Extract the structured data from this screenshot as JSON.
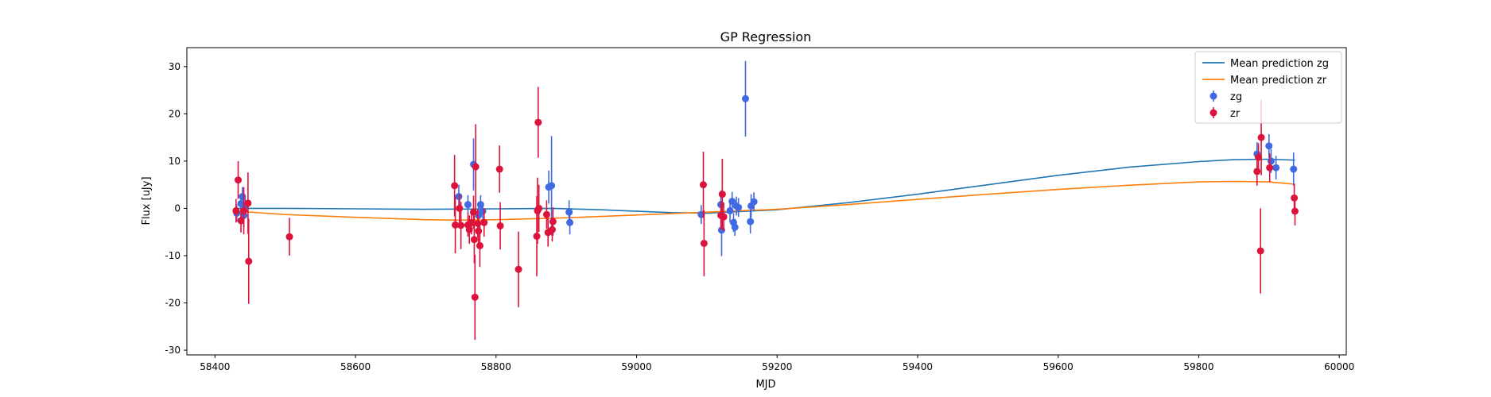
{
  "chart_data": {
    "type": "scatter",
    "title": "GP Regression",
    "xlabel": "MJD",
    "ylabel": "Flux [uJy]",
    "xlim": [
      58360,
      60010
    ],
    "ylim": [
      -31,
      34
    ],
    "xticks": [
      58400,
      58600,
      58800,
      59000,
      59200,
      59400,
      59600,
      59800,
      60000
    ],
    "yticks": [
      -30,
      -20,
      -10,
      0,
      10,
      20,
      30
    ],
    "grid": false,
    "legend_position": "top-right",
    "colors": {
      "mean_zg": "#1f77b4",
      "mean_zr": "#ff7f0e",
      "zg": "#4169e1",
      "zr": "#dc143c"
    },
    "lines": [
      {
        "name": "Mean prediction zg",
        "color_key": "mean_zg",
        "x": [
          58430,
          58500,
          58600,
          58700,
          58800,
          58880,
          58950,
          59050,
          59100,
          59200,
          59300,
          59400,
          59500,
          59600,
          59700,
          59800,
          59850,
          59900,
          59937
        ],
        "y": [
          0.0,
          0.0,
          -0.1,
          -0.2,
          -0.1,
          0.0,
          -0.3,
          -0.9,
          -1.0,
          -0.3,
          1.2,
          3.0,
          5.0,
          7.0,
          8.7,
          9.9,
          10.3,
          10.4,
          10.2
        ]
      },
      {
        "name": "Mean prediction zr",
        "color_key": "mean_zr",
        "x": [
          58430,
          58500,
          58600,
          58700,
          58750,
          58800,
          58900,
          59000,
          59100,
          59200,
          59300,
          59400,
          59500,
          59600,
          59700,
          59800,
          59850,
          59900,
          59937
        ],
        "y": [
          -0.6,
          -1.3,
          -1.9,
          -2.4,
          -2.5,
          -2.4,
          -2.0,
          -1.4,
          -0.8,
          -0.2,
          0.8,
          1.9,
          3.0,
          4.0,
          4.9,
          5.6,
          5.7,
          5.6,
          5.1
        ]
      }
    ],
    "series": [
      {
        "name": "zg",
        "color_key": "zg",
        "points": [
          {
            "x": 58431,
            "y": -1.0,
            "err": 1.8
          },
          {
            "x": 58437,
            "y": 1.0,
            "err": 2.0
          },
          {
            "x": 58439,
            "y": 2.5,
            "err": 2.0
          },
          {
            "x": 58441,
            "y": -1.5,
            "err": 2.5
          },
          {
            "x": 58443,
            "y": 0.5,
            "err": 2.0
          },
          {
            "x": 58747,
            "y": 2.5,
            "err": 2.5
          },
          {
            "x": 58760,
            "y": 0.8,
            "err": 2.0
          },
          {
            "x": 58768,
            "y": 9.3,
            "err": 5.5
          },
          {
            "x": 58775,
            "y": -1.5,
            "err": 2.0
          },
          {
            "x": 58778,
            "y": 0.8,
            "err": 2.0
          },
          {
            "x": 58781,
            "y": -0.6,
            "err": 2.0
          },
          {
            "x": 58875,
            "y": 4.5,
            "err": 3.5
          },
          {
            "x": 58879,
            "y": 4.8,
            "err": 10.5
          },
          {
            "x": 58904,
            "y": -0.8,
            "err": 2.5
          },
          {
            "x": 58905,
            "y": -3.0,
            "err": 2.5
          },
          {
            "x": 59092,
            "y": -1.3,
            "err": 2.0
          },
          {
            "x": 59120,
            "y": 0.8,
            "err": 3.0
          },
          {
            "x": 59121,
            "y": -4.6,
            "err": 5.5
          },
          {
            "x": 59133,
            "y": -0.5,
            "err": 2.5
          },
          {
            "x": 59136,
            "y": 1.5,
            "err": 2.0
          },
          {
            "x": 59138,
            "y": -3.0,
            "err": 2.0
          },
          {
            "x": 59140,
            "y": -4.0,
            "err": 1.8
          },
          {
            "x": 59142,
            "y": 0.5,
            "err": 2.0
          },
          {
            "x": 59145,
            "y": 0.2,
            "err": 2.0
          },
          {
            "x": 59155,
            "y": 23.2,
            "err": 8.0
          },
          {
            "x": 59162,
            "y": -2.8,
            "err": 2.5
          },
          {
            "x": 59163,
            "y": 0.5,
            "err": 2.5
          },
          {
            "x": 59167,
            "y": 1.4,
            "err": 2.0
          },
          {
            "x": 59883,
            "y": 11.5,
            "err": 2.5
          },
          {
            "x": 59900,
            "y": 13.2,
            "err": 2.5
          },
          {
            "x": 59903,
            "y": 10.0,
            "err": 2.5
          },
          {
            "x": 59910,
            "y": 8.6,
            "err": 2.5
          },
          {
            "x": 59935,
            "y": 8.3,
            "err": 3.5
          }
        ]
      },
      {
        "name": "zr",
        "color_key": "zr",
        "points": [
          {
            "x": 58430,
            "y": -0.5,
            "err": 2.5
          },
          {
            "x": 58433,
            "y": 6.0,
            "err": 4.0
          },
          {
            "x": 58437,
            "y": -2.6,
            "err": 2.5
          },
          {
            "x": 58441,
            "y": -0.5,
            "err": 5.0
          },
          {
            "x": 58447,
            "y": 1.1,
            "err": 6.5
          },
          {
            "x": 58448,
            "y": -11.2,
            "err": 9.0
          },
          {
            "x": 58506,
            "y": -6.0,
            "err": 4.0
          },
          {
            "x": 58741,
            "y": 4.8,
            "err": 6.5
          },
          {
            "x": 58742,
            "y": -3.5,
            "err": 6.0
          },
          {
            "x": 58748,
            "y": 0.0,
            "err": 3.0
          },
          {
            "x": 58750,
            "y": -3.6,
            "err": 5.0
          },
          {
            "x": 58760,
            "y": -3.5,
            "err": 2.5
          },
          {
            "x": 58762,
            "y": -4.5,
            "err": 3.0
          },
          {
            "x": 58765,
            "y": -3.0,
            "err": 2.5
          },
          {
            "x": 58768,
            "y": -0.8,
            "err": 3.5
          },
          {
            "x": 58769,
            "y": -6.6,
            "err": 5.0
          },
          {
            "x": 58770,
            "y": -18.8,
            "err": 9.0
          },
          {
            "x": 58771,
            "y": 8.8,
            "err": 9.0
          },
          {
            "x": 58774,
            "y": -3.2,
            "err": 3.0
          },
          {
            "x": 58775,
            "y": -4.8,
            "err": 3.0
          },
          {
            "x": 58777,
            "y": -7.9,
            "err": 4.5
          },
          {
            "x": 58783,
            "y": -3.0,
            "err": 3.0
          },
          {
            "x": 58805,
            "y": 8.3,
            "err": 5.0
          },
          {
            "x": 58806,
            "y": -3.7,
            "err": 5.0
          },
          {
            "x": 58832,
            "y": -12.9,
            "err": 8.0
          },
          {
            "x": 58859,
            "y": -0.5,
            "err": 7.0
          },
          {
            "x": 58860,
            "y": 18.2,
            "err": 7.5
          },
          {
            "x": 58861,
            "y": 0.0,
            "err": 5.0
          },
          {
            "x": 58858,
            "y": -5.9,
            "err": 8.5
          },
          {
            "x": 58872,
            "y": -1.3,
            "err": 3.0
          },
          {
            "x": 58874,
            "y": -5.1,
            "err": 3.0
          },
          {
            "x": 58880,
            "y": -4.5,
            "err": 2.5
          },
          {
            "x": 58881,
            "y": -2.8,
            "err": 3.0
          },
          {
            "x": 59095,
            "y": 5.0,
            "err": 7.0
          },
          {
            "x": 59096,
            "y": -7.4,
            "err": 7.0
          },
          {
            "x": 59120,
            "y": -1.5,
            "err": 3.0
          },
          {
            "x": 59122,
            "y": 3.0,
            "err": 7.5
          },
          {
            "x": 59124,
            "y": -1.8,
            "err": 3.0
          },
          {
            "x": 59883,
            "y": 7.8,
            "err": 3.0
          },
          {
            "x": 59885,
            "y": 10.8,
            "err": 3.0
          },
          {
            "x": 59889,
            "y": 15.0,
            "err": 8.0
          },
          {
            "x": 59888,
            "y": -9.0,
            "err": 9.0
          },
          {
            "x": 59901,
            "y": 8.6,
            "err": 3.0
          },
          {
            "x": 59936,
            "y": 2.2,
            "err": 3.0
          },
          {
            "x": 59937,
            "y": -0.6,
            "err": 3.0
          }
        ]
      }
    ]
  }
}
